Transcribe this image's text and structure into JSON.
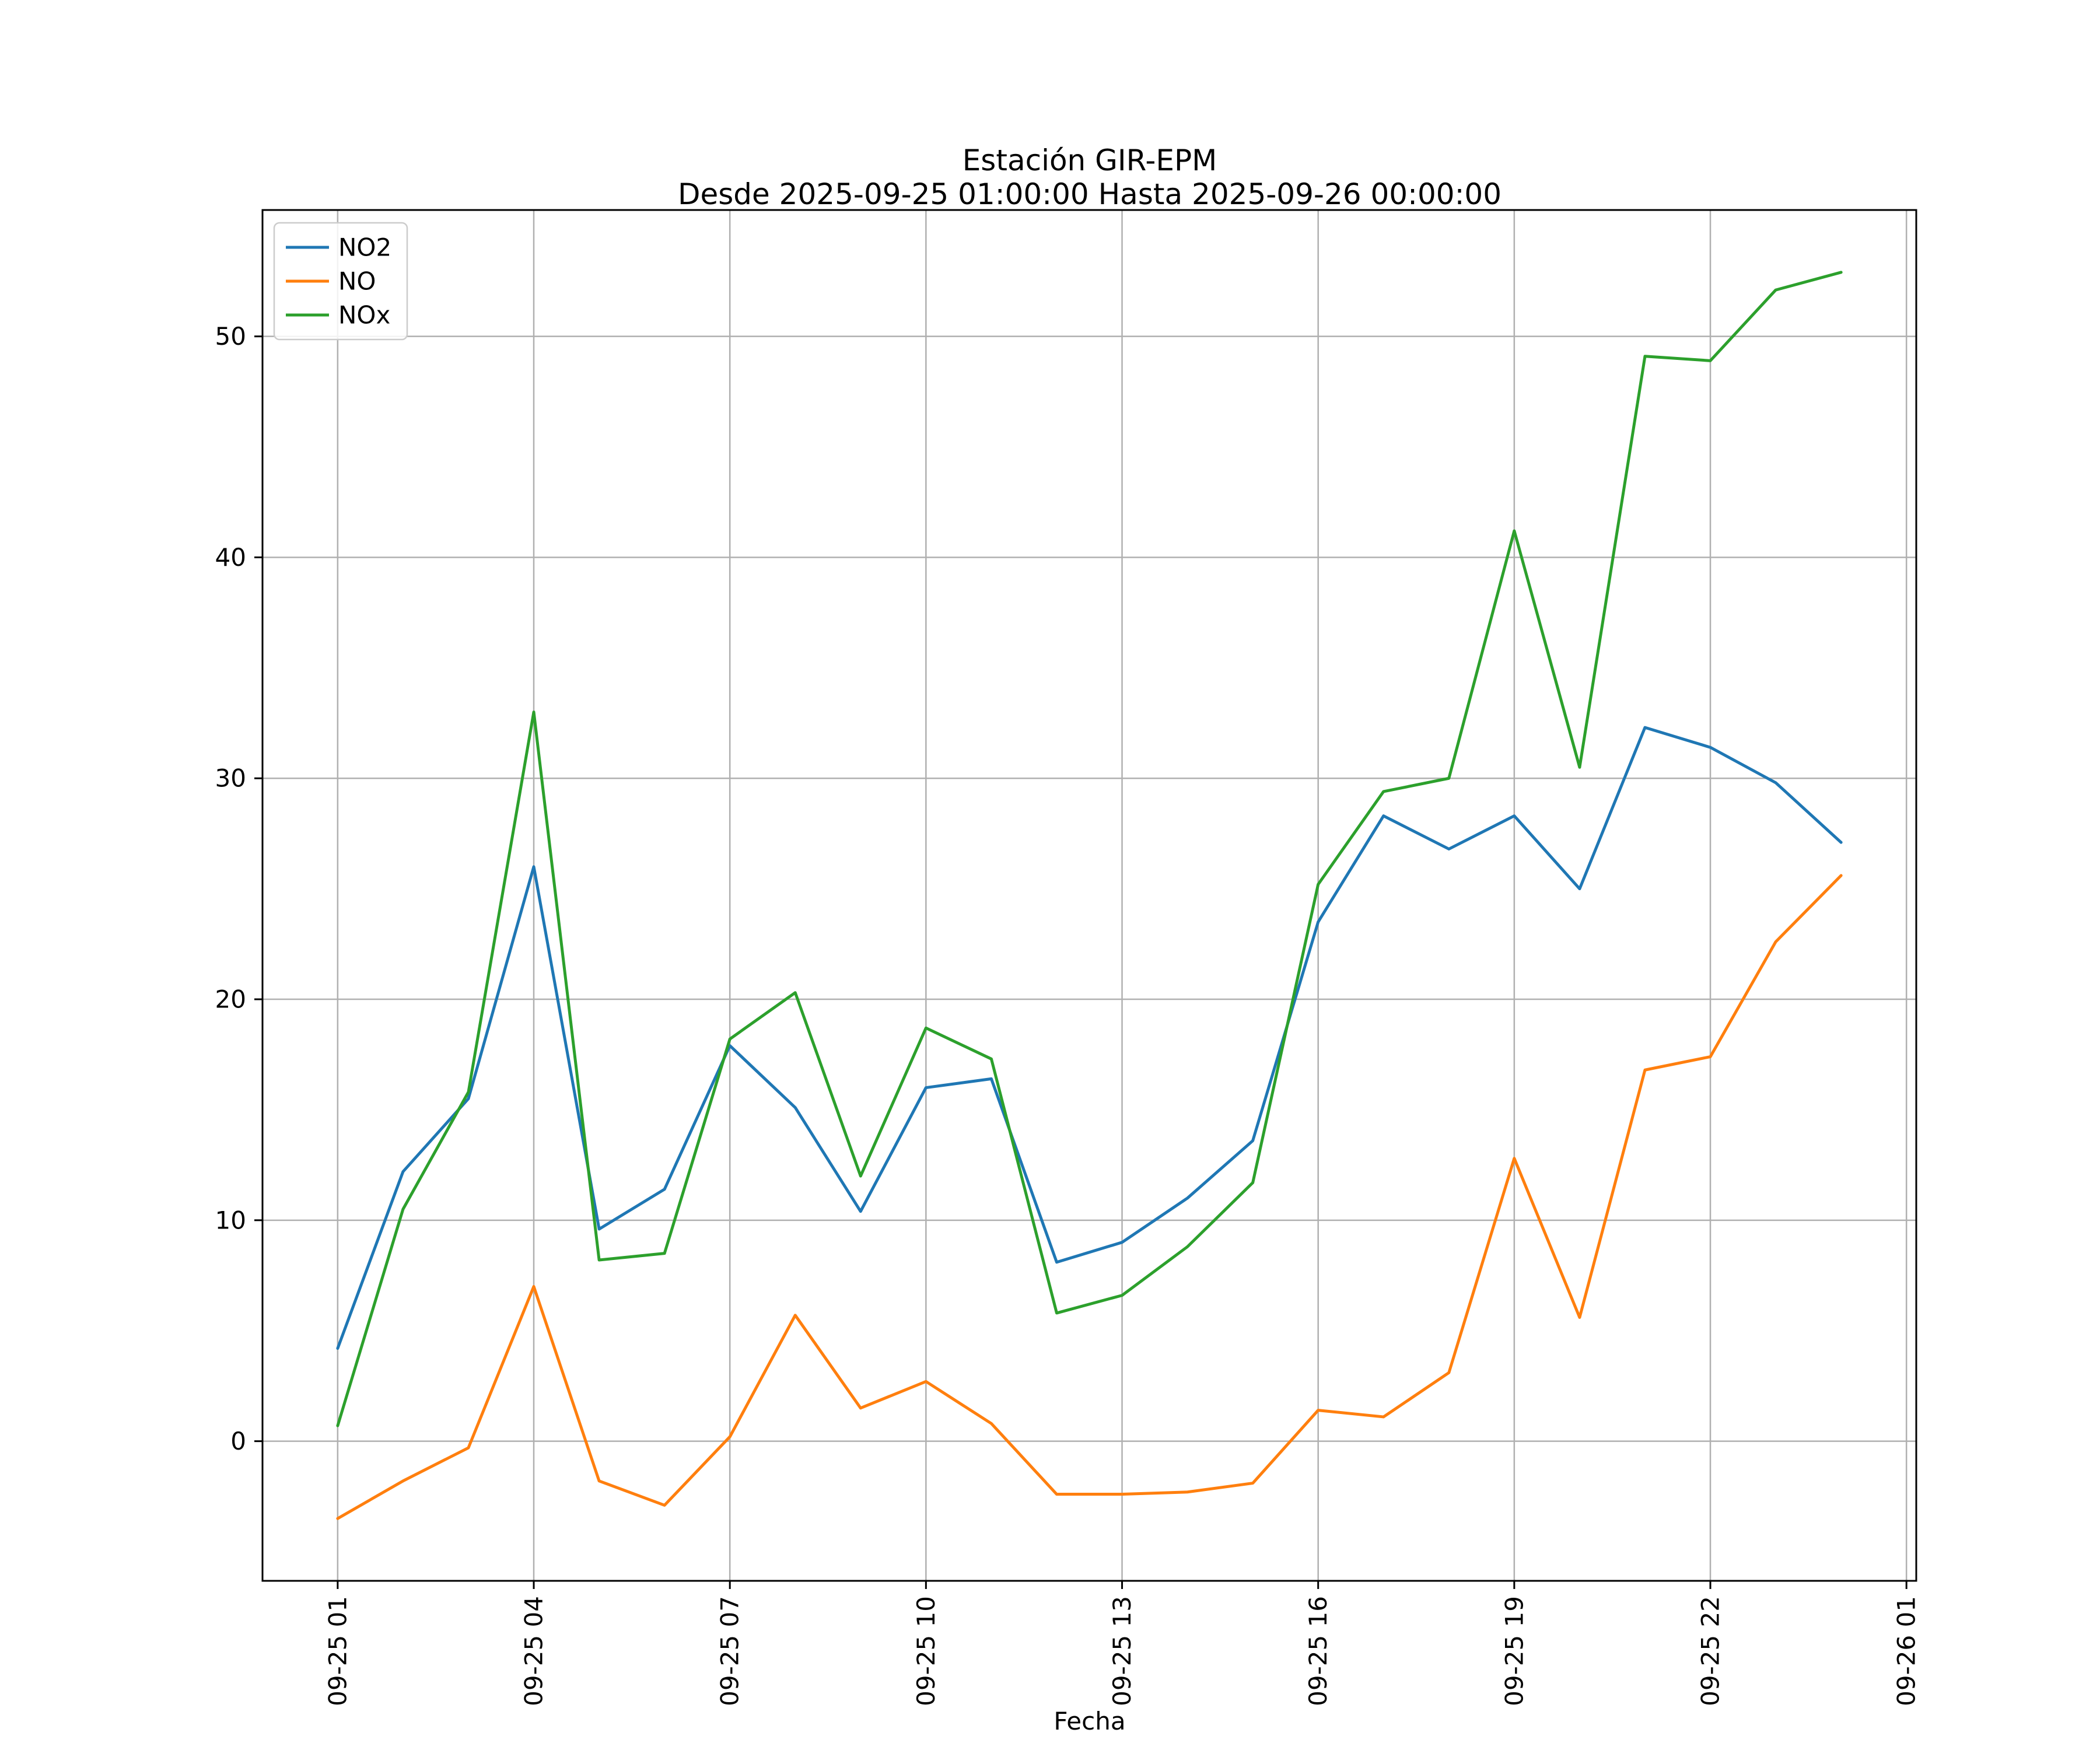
{
  "chart_data": {
    "type": "line",
    "title": "Estación GIR-EPM",
    "subtitle": "Desde 2025-09-25 01:00:00 Hasta 2025-09-26 00:00:00",
    "xlabel": "Fecha",
    "ylabel": "",
    "grid": true,
    "legend_position": "upper-left",
    "x_hours": [
      1,
      2,
      3,
      4,
      5,
      6,
      7,
      8,
      9,
      10,
      11,
      12,
      13,
      14,
      15,
      16,
      17,
      18,
      19,
      20,
      21,
      22,
      23,
      24
    ],
    "x_tick_positions": [
      1,
      4,
      7,
      10,
      13,
      16,
      19,
      22,
      25
    ],
    "x_tick_labels": [
      "09-25 01",
      "09-25 04",
      "09-25 07",
      "09-25 10",
      "09-25 13",
      "09-25 16",
      "09-25 19",
      "09-25 22",
      "09-26 01"
    ],
    "y_ticks": [
      0,
      10,
      20,
      30,
      40,
      50
    ],
    "xlim": [
      -0.15,
      25.15
    ],
    "ylim": [
      -6.32,
      55.72
    ],
    "series": [
      {
        "name": "NO2",
        "color": "#1f77b4",
        "values": [
          4.2,
          12.2,
          15.5,
          26.0,
          9.6,
          11.4,
          17.9,
          15.1,
          10.4,
          16.0,
          16.4,
          8.1,
          9.0,
          11.0,
          13.6,
          23.5,
          28.3,
          26.8,
          28.3,
          25.0,
          32.3,
          31.4,
          29.8,
          27.1
        ]
      },
      {
        "name": "NO",
        "color": "#ff7f0e",
        "values": [
          -3.5,
          -1.8,
          -0.3,
          7.0,
          -1.8,
          -2.9,
          0.2,
          5.7,
          1.5,
          2.7,
          0.8,
          -2.4,
          -2.4,
          -2.3,
          -1.9,
          1.4,
          1.1,
          3.1,
          12.8,
          5.6,
          16.8,
          17.4,
          22.6,
          25.6
        ]
      },
      {
        "name": "NOx",
        "color": "#2ca02c",
        "values": [
          0.7,
          10.5,
          15.8,
          33.0,
          8.2,
          8.5,
          18.2,
          20.3,
          12.0,
          18.7,
          17.3,
          5.8,
          6.6,
          8.8,
          11.7,
          25.2,
          29.4,
          30.0,
          41.2,
          30.5,
          49.1,
          48.9,
          52.1,
          52.9
        ]
      }
    ]
  }
}
